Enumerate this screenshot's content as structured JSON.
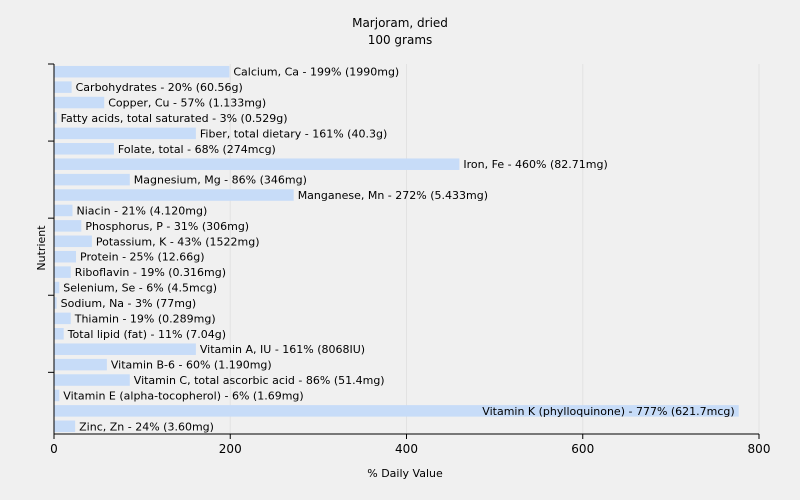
{
  "chart_data": {
    "type": "bar",
    "orientation": "horizontal",
    "title": "Marjoram, dried",
    "subtitle": "100 grams",
    "xlabel": "% Daily Value",
    "ylabel": "Nutrient",
    "xlim": [
      0,
      800
    ],
    "xticks": [
      0,
      200,
      400,
      600,
      800
    ],
    "grid": true,
    "bar_color": "#c7dcf8",
    "categories": [
      "Calcium, Ca - 199% (1990mg)",
      "Carbohydrates - 20% (60.56g)",
      "Copper, Cu - 57% (1.133mg)",
      "Fatty acids, total saturated - 3% (0.529g)",
      "Fiber, total dietary - 161% (40.3g)",
      "Folate, total - 68% (274mcg)",
      "Iron, Fe - 460% (82.71mg)",
      "Magnesium, Mg - 86% (346mg)",
      "Manganese, Mn - 272% (5.433mg)",
      "Niacin - 21% (4.120mg)",
      "Phosphorus, P - 31% (306mg)",
      "Potassium, K - 43% (1522mg)",
      "Protein - 25% (12.66g)",
      "Riboflavin - 19% (0.316mg)",
      "Selenium, Se - 6% (4.5mcg)",
      "Sodium, Na - 3% (77mg)",
      "Thiamin - 19% (0.289mg)",
      "Total lipid (fat) - 11% (7.04g)",
      "Vitamin A, IU - 161% (8068IU)",
      "Vitamin B-6 - 60% (1.190mg)",
      "Vitamin C, total ascorbic acid - 86% (51.4mg)",
      "Vitamin E (alpha-tocopherol) - 6% (1.69mg)",
      "Vitamin K (phylloquinone) - 777% (621.7mcg)",
      "Zinc, Zn - 24% (3.60mg)"
    ],
    "values": [
      199,
      20,
      57,
      3,
      161,
      68,
      460,
      86,
      272,
      21,
      31,
      43,
      25,
      19,
      6,
      3,
      19,
      11,
      161,
      60,
      86,
      6,
      777,
      24
    ]
  }
}
